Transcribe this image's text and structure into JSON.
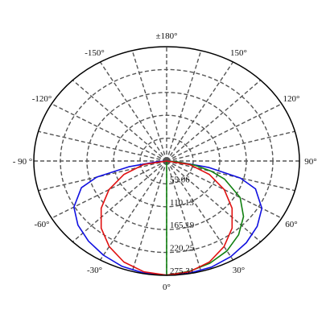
{
  "chart_data": {
    "type": "polar",
    "angle_labels": [
      {
        "deg": 180,
        "text": "±180°"
      },
      {
        "deg": 150,
        "text": "150°"
      },
      {
        "deg": 120,
        "text": "120°"
      },
      {
        "deg": 90,
        "text": "90°"
      },
      {
        "deg": 60,
        "text": "60°"
      },
      {
        "deg": 30,
        "text": "30°"
      },
      {
        "deg": 0,
        "text": "0°"
      },
      {
        "deg": -30,
        "text": "-30°"
      },
      {
        "deg": -60,
        "text": "-60°"
      },
      {
        "deg": -90,
        "text": "- 90 °"
      },
      {
        "deg": -120,
        "text": "-120°"
      },
      {
        "deg": -150,
        "text": "-150°"
      }
    ],
    "ring_values": [
      55.06,
      110.13,
      165.19,
      220.25,
      275.31
    ],
    "ring_labels": [
      "55.06",
      "110.13",
      "165.19",
      "220.25",
      "275.31"
    ],
    "r_max": 275.31,
    "series": [
      {
        "color": "#1010e0",
        "theta": [
          -85,
          -80,
          -75,
          -70,
          -60,
          -50,
          -40,
          -30,
          -20,
          -10,
          0,
          10,
          20,
          30,
          40,
          50,
          60,
          70,
          75,
          80,
          85
        ],
        "r": [
          20,
          80,
          150,
          188,
          222,
          240,
          252,
          262,
          270,
          274,
          275,
          274,
          272,
          266,
          257,
          245,
          228,
          196,
          158,
          88,
          22
        ]
      },
      {
        "color": "#108010",
        "theta": [
          0,
          10,
          20,
          30,
          40,
          50,
          60,
          70,
          75,
          80,
          85
        ],
        "r": [
          275,
          270,
          262,
          250,
          232,
          208,
          176,
          128,
          96,
          60,
          22
        ]
      },
      {
        "color": "#e01010",
        "theta": [
          -90,
          -80,
          -70,
          -60,
          -50,
          -40,
          -30,
          -20,
          -10,
          0,
          10,
          20,
          30,
          40,
          50,
          60,
          70,
          80,
          90
        ],
        "r": [
          0,
          48,
          94,
          138,
          177,
          211,
          238,
          259,
          271,
          275,
          271,
          259,
          238,
          211,
          177,
          138,
          94,
          48,
          0
        ]
      }
    ]
  }
}
